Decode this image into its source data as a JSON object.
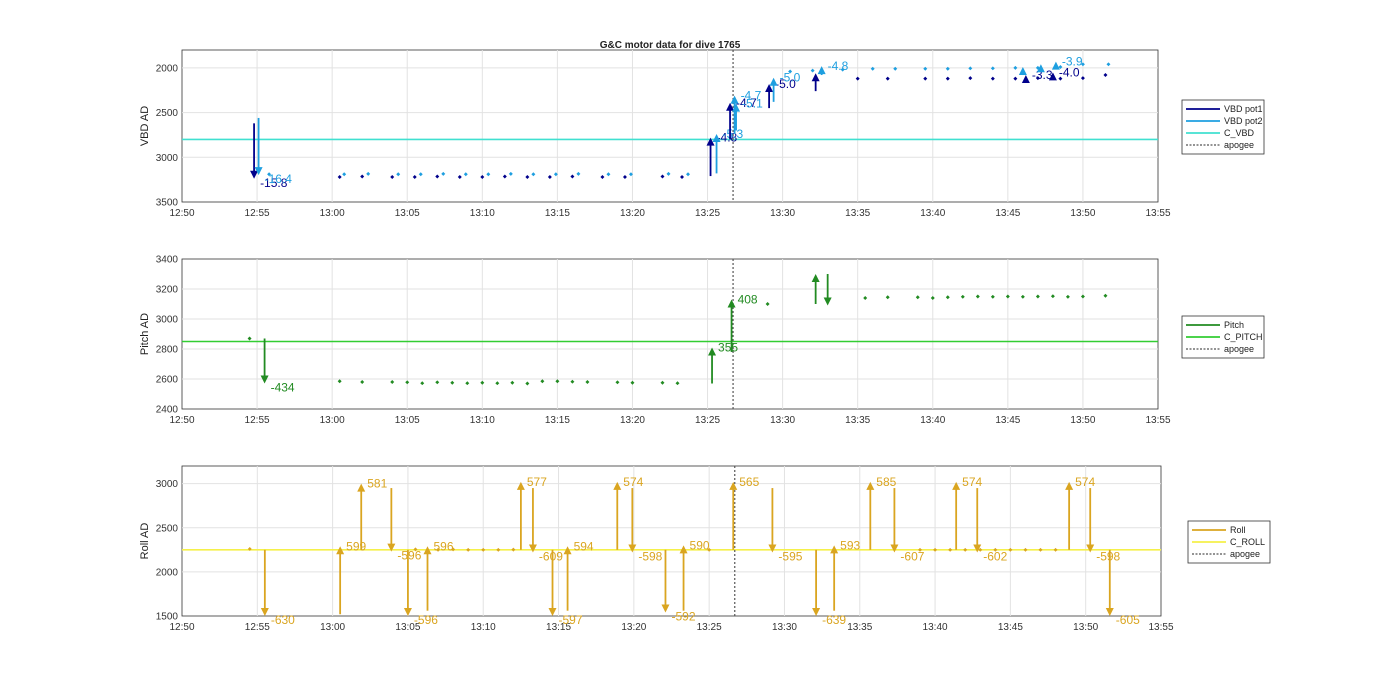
{
  "figure": {
    "title": "G&C motor data for dive 1765"
  },
  "x_ticks": [
    "12:50",
    "12:55",
    "13:00",
    "13:05",
    "13:10",
    "13:15",
    "13:20",
    "13:25",
    "13:30",
    "13:35",
    "13:40",
    "13:45",
    "13:50",
    "13:55"
  ],
  "colors": {
    "vbd_pot1": "#00008b",
    "vbd_pot2": "#1e9fe0",
    "c_vbd": "#40e0d0",
    "pitch": "#228b22",
    "c_pitch": "#32cd32",
    "roll": "#daa520",
    "c_roll": "#f5f04a",
    "apogee": "#555555"
  },
  "chart_data": [
    {
      "type": "scatter",
      "ylabel": "VBD AD",
      "xlim": [
        "12:50",
        "13:55"
      ],
      "ylim": [
        3500,
        1800
      ],
      "reversed_y": true,
      "y_ticks": [
        2000,
        2500,
        3000,
        3500
      ],
      "grid": true,
      "legend": {
        "position": "right",
        "entries": [
          "VBD pot1",
          "VBD pot2",
          "C_VBD",
          "apogee"
        ]
      },
      "reference_line": {
        "name": "C_VBD",
        "value": 2800
      },
      "apogee": "13:26.7",
      "series": [
        {
          "name": "VBD pot1",
          "x": [
            "13:00.5",
            "13:02",
            "13:04",
            "13:05.5",
            "13:07",
            "13:08.5",
            "13:10",
            "13:11.5",
            "13:13",
            "13:14.5",
            "13:16",
            "13:18",
            "13:19.5",
            "13:22",
            "13:23.3",
            "13:35",
            "13:37",
            "13:39.5",
            "13:41",
            "13:42.5",
            "13:44",
            "13:45.5",
            "13:47",
            "13:48.5",
            "13:50",
            "13:51.5"
          ],
          "values": [
            3220,
            3215,
            3220,
            3220,
            3215,
            3220,
            3220,
            3215,
            3220,
            3220,
            3215,
            3220,
            3220,
            3215,
            3220,
            2120,
            2120,
            2120,
            2120,
            2115,
            2120,
            2120,
            2115,
            2120,
            2115,
            2080
          ]
        },
        {
          "name": "VBD pot2",
          "x": [
            "12:55.8",
            "13:00.8",
            "13:02.4",
            "13:04.4",
            "13:05.9",
            "13:07.4",
            "13:08.9",
            "13:10.4",
            "13:11.9",
            "13:13.4",
            "13:14.9",
            "13:16.4",
            "13:18.4",
            "13:19.9",
            "13:22.4",
            "13:23.7",
            "13:30.5",
            "13:32",
            "13:34",
            "13:36",
            "13:37.5",
            "13:39.5",
            "13:41",
            "13:42.5",
            "13:44",
            "13:45.5",
            "13:47",
            "13:48.5",
            "13:50",
            "13:51.7"
          ],
          "values": [
            3190,
            3190,
            3185,
            3190,
            3190,
            3185,
            3190,
            3190,
            3185,
            3190,
            3190,
            3185,
            3190,
            3190,
            3185,
            3190,
            2040,
            2030,
            2020,
            2010,
            2010,
            2010,
            2010,
            2005,
            2005,
            2000,
            2000,
            1990,
            1960,
            1960
          ]
        }
      ],
      "motor_moves": [
        {
          "series": "VBD pot1",
          "x": "12:54.8",
          "from": 2620,
          "to": 3240,
          "label": "-15.8"
        },
        {
          "series": "VBD pot2",
          "x": "12:55.1",
          "from": 2560,
          "to": 3200,
          "label": "-16.4"
        },
        {
          "series": "VBD pot1",
          "x": "13:25.2",
          "from": 3210,
          "to": 2780,
          "label": "-4.8"
        },
        {
          "series": "VBD pot2",
          "x": "13:25.6",
          "from": 3180,
          "to": 2740,
          "label": "-5.3"
        },
        {
          "series": "VBD pot1",
          "x": "13:26.5",
          "from": 2800,
          "to": 2390,
          "label": "-4.7"
        },
        {
          "series": "VBD pot2",
          "x": "13:26.8",
          "from": 2740,
          "to": 2310,
          "label": "-4.7"
        },
        {
          "series": "VBD pot2",
          "x": "13:26.9",
          "from": 2700,
          "to": 2400,
          "label": "-5.1"
        },
        {
          "series": "VBD pot1",
          "x": "13:29.1",
          "from": 2450,
          "to": 2180,
          "label": "-5.0"
        },
        {
          "series": "VBD pot2",
          "x": "13:29.4",
          "from": 2380,
          "to": 2110,
          "label": "-5.0"
        },
        {
          "series": "VBD pot1",
          "x": "13:32.2",
          "from": 2260,
          "to": 2060,
          "label": ""
        },
        {
          "series": "VBD pot2",
          "x": "13:32.6",
          "from": 2080,
          "to": 1980,
          "label": "-4.8"
        },
        {
          "series": "VBD pot1",
          "x": "13:46.2",
          "from": 2140,
          "to": 2080,
          "label": "-3.3"
        },
        {
          "series": "VBD pot2",
          "x": "13:46.0",
          "from": 2080,
          "to": 1990,
          "label": ""
        },
        {
          "series": "VBD pot2",
          "x": "13:47.2",
          "from": 2020,
          "to": 1960,
          "label": ""
        },
        {
          "series": "VBD pot1",
          "x": "13:48.0",
          "from": 2110,
          "to": 2050,
          "label": "-4.0"
        },
        {
          "series": "VBD pot2",
          "x": "13:48.2",
          "from": 2000,
          "to": 1930,
          "label": "-3.9"
        }
      ]
    },
    {
      "type": "scatter",
      "ylabel": "Pitch AD",
      "xlim": [
        "12:50",
        "13:55"
      ],
      "ylim": [
        2400,
        3400
      ],
      "y_ticks": [
        2400,
        2600,
        2800,
        3000,
        3200,
        3400
      ],
      "grid": true,
      "legend": {
        "position": "right",
        "entries": [
          "Pitch",
          "C_PITCH",
          "apogee"
        ]
      },
      "reference_line": {
        "name": "C_PITCH",
        "value": 2850
      },
      "apogee": "13:26.7",
      "series": [
        {
          "name": "Pitch",
          "x": [
            "12:54.5",
            "13:00.5",
            "13:02",
            "13:04",
            "13:05",
            "13:06",
            "13:07",
            "13:08",
            "13:09",
            "13:10",
            "13:11",
            "13:12",
            "13:13",
            "13:14",
            "13:15",
            "13:16",
            "13:17",
            "13:19",
            "13:20",
            "13:22",
            "13:23",
            "13:29",
            "13:35.5",
            "13:37",
            "13:39",
            "13:40",
            "13:41",
            "13:42",
            "13:43",
            "13:44",
            "13:45",
            "13:46",
            "13:47",
            "13:48",
            "13:49",
            "13:50",
            "13:51.5"
          ],
          "values": [
            2870,
            2585,
            2580,
            2580,
            2578,
            2572,
            2578,
            2575,
            2572,
            2575,
            2572,
            2575,
            2570,
            2585,
            2585,
            2582,
            2580,
            2578,
            2575,
            2575,
            2572,
            3100,
            3140,
            3145,
            3145,
            3140,
            3145,
            3148,
            3150,
            3148,
            3150,
            3148,
            3150,
            3152,
            3148,
            3150,
            3155
          ]
        }
      ],
      "motor_moves": [
        {
          "x": "12:55.5",
          "from": 2870,
          "to": 2570,
          "label": "-434"
        },
        {
          "x": "13:25.3",
          "from": 2570,
          "to": 2810,
          "label": "355"
        },
        {
          "x": "13:26.6",
          "from": 2780,
          "to": 3130,
          "label": "408"
        },
        {
          "x": "13:32.2",
          "from": 3100,
          "to": 3300,
          "label": ""
        },
        {
          "x": "13:33.0",
          "from": 3300,
          "to": 3090,
          "label": ""
        }
      ]
    },
    {
      "type": "scatter",
      "ylabel": "Roll AD",
      "xlim": [
        "12:50",
        "13:55"
      ],
      "ylim": [
        1500,
        3200
      ],
      "y_ticks": [
        1500,
        2000,
        2500,
        3000
      ],
      "grid": true,
      "legend": {
        "position": "right",
        "entries": [
          "Roll",
          "C_ROLL",
          "apogee"
        ]
      },
      "reference_line": {
        "name": "C_ROLL",
        "value": 2250
      },
      "apogee": "13:26.7",
      "series": [
        {
          "name": "Roll",
          "x": [
            "12:54.5",
            "13:05.5",
            "13:07",
            "13:08",
            "13:09",
            "13:10",
            "13:11",
            "13:12",
            "13:25",
            "13:39",
            "13:40",
            "13:41",
            "13:42",
            "13:43",
            "13:44",
            "13:45",
            "13:46",
            "13:47",
            "13:48"
          ],
          "values": [
            2260,
            2255,
            2250,
            2255,
            2250,
            2250,
            2250,
            2252,
            2250,
            2250,
            2250,
            2250,
            2250,
            2250,
            2250,
            2250,
            2250,
            2250,
            2250
          ]
        }
      ],
      "motor_moves": [
        {
          "x": "12:55.5",
          "from": 2250,
          "to": 1500,
          "label": "-630"
        },
        {
          "x": "13:00.5",
          "from": 1520,
          "to": 2290,
          "label": "599"
        },
        {
          "x": "13:01.9",
          "from": 2250,
          "to": 3000,
          "label": "581"
        },
        {
          "x": "13:03.9",
          "from": 2950,
          "to": 2230,
          "label": "-596"
        },
        {
          "x": "13:05.0",
          "from": 2250,
          "to": 1500,
          "label": "-596"
        },
        {
          "x": "13:06.3",
          "from": 1560,
          "to": 2290,
          "label": "596"
        },
        {
          "x": "13:12.5",
          "from": 2250,
          "to": 3020,
          "label": "577"
        },
        {
          "x": "13:13.3",
          "from": 2950,
          "to": 2220,
          "label": "-609"
        },
        {
          "x": "13:14.6",
          "from": 2250,
          "to": 1500,
          "label": "-597"
        },
        {
          "x": "13:15.6",
          "from": 1560,
          "to": 2290,
          "label": "594"
        },
        {
          "x": "13:18.9",
          "from": 2250,
          "to": 3020,
          "label": "574"
        },
        {
          "x": "13:19.9",
          "from": 2950,
          "to": 2220,
          "label": "-598"
        },
        {
          "x": "13:22.1",
          "from": 2250,
          "to": 1540,
          "label": "-592"
        },
        {
          "x": "13:23.3",
          "from": 1560,
          "to": 2300,
          "label": "590"
        },
        {
          "x": "13:26.6",
          "from": 2250,
          "to": 3020,
          "label": "565"
        },
        {
          "x": "13:29.2",
          "from": 2950,
          "to": 2220,
          "label": "-595"
        },
        {
          "x": "13:32.1",
          "from": 2250,
          "to": 1500,
          "label": "-639"
        },
        {
          "x": "13:33.3",
          "from": 1560,
          "to": 2300,
          "label": "593"
        },
        {
          "x": "13:35.7",
          "from": 2250,
          "to": 3020,
          "label": "585"
        },
        {
          "x": "13:37.3",
          "from": 2950,
          "to": 2220,
          "label": "-607"
        },
        {
          "x": "13:41.4",
          "from": 2250,
          "to": 3020,
          "label": "574"
        },
        {
          "x": "13:42.8",
          "from": 2950,
          "to": 2220,
          "label": "-602"
        },
        {
          "x": "13:48.9",
          "from": 2250,
          "to": 3020,
          "label": "574"
        },
        {
          "x": "13:50.3",
          "from": 2950,
          "to": 2220,
          "label": "-598"
        },
        {
          "x": "13:51.6",
          "from": 2250,
          "to": 1500,
          "label": "-605"
        }
      ]
    }
  ]
}
